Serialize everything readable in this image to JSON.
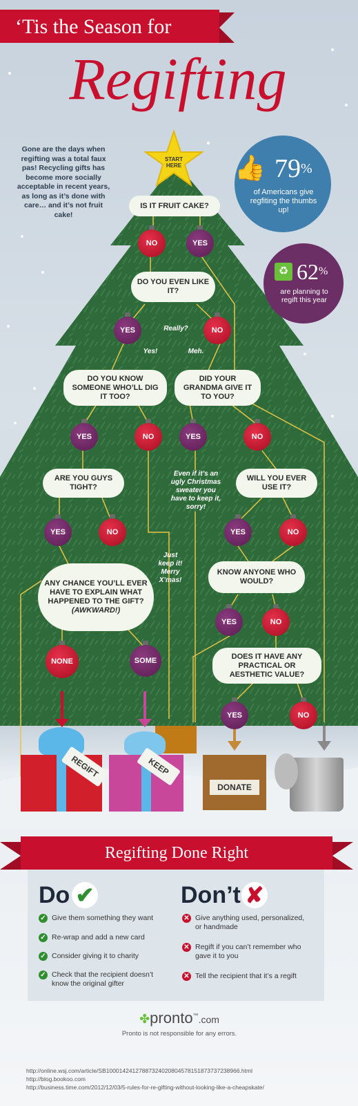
{
  "header": {
    "subtitle": "‘Tis the Season for",
    "title": "Regifting"
  },
  "intro": "Gone are the days when regifting was a total faux pas! Recycling gifts has become more socially acceptable in recent years, as long as it’s done with care… and it’s not fruit cake!",
  "stats": {
    "stat1_value": "79",
    "stat1_unit": "%",
    "stat1_text": "of Americans give regfiting the thumbs up!",
    "stat2_value": "62",
    "stat2_unit": "%",
    "stat2_text": "are planning to regift this year"
  },
  "start": "START HERE",
  "questions": {
    "q1": "IS IT FRUIT CAKE?",
    "q2": "DO YOU EVEN LIKE IT?",
    "q3": "DO YOU KNOW SOMEONE WHO’LL DIG IT TOO?",
    "q4": "DID YOUR GRANDMA GIVE IT TO YOU?",
    "q5": "ARE YOU GUYS TIGHT?",
    "q6": "WILL YOU EVER USE IT?",
    "q7": "KNOW ANYONE WHO WOULD?",
    "q8_a": "ANY CHANCE YOU’LL EVER HAVE TO EXPLAIN WHAT HAPPENED TO THE GIFT?",
    "q8_b": "(AWKWARD!)",
    "q9": "DOES IT HAVE ANY PRACTICAL OR AESTHETIC VALUE?"
  },
  "answers": {
    "no": "NO",
    "yes": "YES",
    "none": "NONE",
    "some": "SOME"
  },
  "notes": {
    "really": "Really?",
    "yes_bang": "Yes!",
    "meh": "Meh.",
    "grandma": "Even if it’s an ugly Christmas sweater you have to keep it, sorry!",
    "keep_it": "Just keep it! Merry X’mas!"
  },
  "outcomes": {
    "regift": "REGIFT",
    "keep": "KEEP",
    "donate": "DONATE"
  },
  "section": {
    "title": "Regifting Done Right",
    "do_heading": "Do",
    "dont_heading": "Don’t",
    "do_items": [
      "Give them something they want",
      "Re-wrap and add a new card",
      "Consider giving it to charity",
      "Check that the recipient doesn’t know the original gifter"
    ],
    "dont_items": [
      "Give anything used, personalized, or handmade",
      "Regift if you can’t remember who gave it to you",
      "Tell the recipient that it’s a regift"
    ]
  },
  "footer": {
    "brand": "pronto",
    "brand_tm": "™",
    "brand_com": ".com",
    "disclaimer": "Pronto is not responsible for any errors.",
    "sources": [
      "http://online.wsj.com/article/SB10001424127887324020804578151873737238966.html",
      "http://blog.bookoo.com",
      "http://business.time.com/2012/12/03/5-rules-for-re-gifting-without-looking-like-a-cheapskate/"
    ]
  },
  "colors": {
    "red": "#c8102e",
    "tree": "#2f6b3a",
    "purple": "#5a1d52",
    "stat_blue": "#3f7fae",
    "stat_purple": "#6b2f66",
    "check_green": "#2f8f2f"
  }
}
